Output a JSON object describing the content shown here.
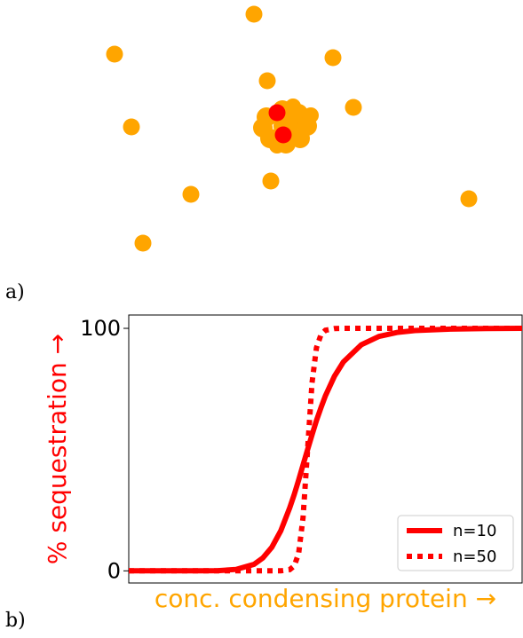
{
  "panel_labels": [
    "a)",
    "b)"
  ],
  "chart_data": {
    "type": "line",
    "xlabel": "conc. condensing protein →",
    "xlabel_color": "#ffa500",
    "ylabel": "% sequestration →",
    "ylabel_color": "#ff0000",
    "x": [
      0,
      0.2,
      0.4,
      0.5,
      0.6,
      0.7,
      0.75,
      0.8,
      0.85,
      0.9,
      0.925,
      0.95,
      0.975,
      1.0,
      1.025,
      1.05,
      1.075,
      1.1,
      1.15,
      1.2,
      1.3,
      1.4,
      1.5,
      1.6,
      1.8,
      2.0,
      2.2
    ],
    "xlim": [
      0,
      2.2
    ],
    "ylim": [
      -5,
      105.5
    ],
    "yticks": [
      0,
      100
    ],
    "grid": false,
    "legend": "lower right",
    "series": [
      {
        "name": "n=10",
        "color": "#ff0000",
        "linestyle": "solid",
        "values": [
          0,
          0,
          0.01,
          0.1,
          0.6,
          2.7,
          5.3,
          9.7,
          16.5,
          25.9,
          31.4,
          37.4,
          43.7,
          50,
          56.1,
          62.0,
          67.3,
          72.2,
          80.2,
          86.1,
          93.2,
          96.7,
          98.3,
          99.1,
          99.7,
          99.9,
          100
        ]
      },
      {
        "name": "n=50",
        "color": "#ff0000",
        "linestyle": "dotted",
        "values": [
          0,
          0,
          0,
          0,
          0,
          0,
          0,
          0,
          0,
          0.5,
          2.0,
          7.1,
          22.0,
          50,
          77.5,
          92.0,
          97.4,
          99.2,
          99.9,
          100,
          100,
          100,
          100,
          100,
          100,
          100,
          100
        ]
      }
    ]
  }
}
